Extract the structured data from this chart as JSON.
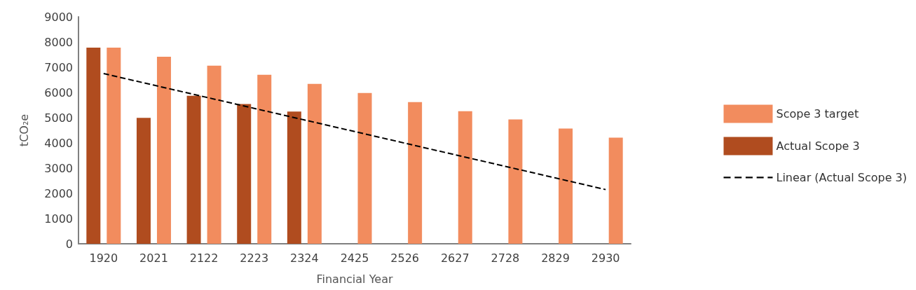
{
  "chart_data": {
    "type": "bar",
    "xlabel": "Financial Year",
    "ylabel": "tCO₂e",
    "categories": [
      "1920",
      "2021",
      "2122",
      "2223",
      "2324",
      "2425",
      "2526",
      "2627",
      "2728",
      "2829",
      "2930"
    ],
    "series": [
      {
        "name": "Actual Scope 3",
        "color": "#b04c1f",
        "values": [
          7780,
          4990,
          5870,
          5540,
          5240,
          null,
          null,
          null,
          null,
          null,
          null
        ]
      },
      {
        "name": "Scope 3 target",
        "color": "#f28c5e",
        "values": [
          7780,
          7420,
          7060,
          6700,
          6340,
          5980,
          5620,
          5260,
          4930,
          4570,
          4210
        ]
      },
      {
        "name": "Linear (Actual Scope 3)",
        "type": "line",
        "color": "#000000",
        "line_style": "dashed",
        "marker": "none",
        "values": [
          6750,
          6290,
          5830,
          5370,
          4910,
          4450,
          3990,
          3530,
          3070,
          2610,
          2150
        ]
      }
    ],
    "ylim": [
      0,
      9000
    ],
    "yticks": [
      0,
      {
        "value": 1000,
        "label": "1000"
      },
      {
        "value": 2000,
        "label": "2000"
      },
      {
        "value": 3000,
        "label": "3000"
      },
      {
        "value": 4000,
        "label": "4000"
      },
      {
        "value": 5000,
        "label": "5000"
      },
      {
        "value": 6000,
        "label": "6000"
      },
      {
        "value": 7000,
        "label": "7000"
      },
      {
        "value": 8000,
        "label": "8000"
      },
      {
        "value": 9000,
        "label": "9000"
      }
    ],
    "grid": false,
    "legend": "right"
  }
}
